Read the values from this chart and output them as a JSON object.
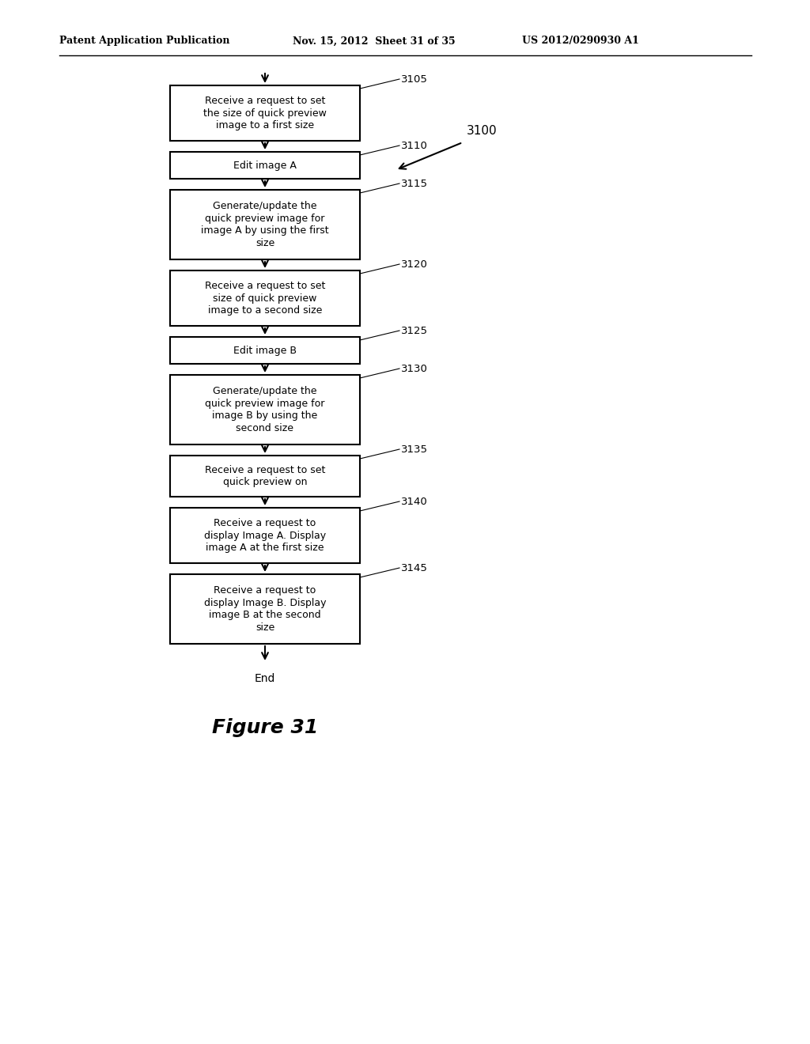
{
  "header_left": "Patent Application Publication",
  "header_mid": "Nov. 15, 2012  Sheet 31 of 35",
  "header_right": "US 2012/0290930 A1",
  "figure_label": "Figure 31",
  "flow_label": "3100",
  "boxes": [
    {
      "text": "Receive a request to set\nthe size of quick preview\nimage to a first size",
      "label": "3105",
      "lines": 3
    },
    {
      "text": "Edit image A",
      "label": "3110",
      "lines": 1
    },
    {
      "text": "Generate/update the\nquick preview image for\nimage A by using the first\nsize",
      "label": "3115",
      "lines": 4
    },
    {
      "text": "Receive a request to set\nsize of quick preview\nimage to a second size",
      "label": "3120",
      "lines": 3
    },
    {
      "text": "Edit image B",
      "label": "3125",
      "lines": 1
    },
    {
      "text": "Generate/update the\nquick preview image for\nimage B by using the\nsecond size",
      "label": "3130",
      "lines": 4
    },
    {
      "text": "Receive a request to set\nquick preview on",
      "label": "3135",
      "lines": 2
    },
    {
      "text": "Receive a request to\ndisplay Image A. Display\nimage A at the first size",
      "label": "3140",
      "lines": 3
    },
    {
      "text": "Receive a request to\ndisplay Image B. Display\nimage B at the second\nsize",
      "label": "3145",
      "lines": 4
    }
  ],
  "end_label": "End",
  "bg_color": "#ffffff",
  "box_face_color": "#ffffff",
  "box_edge_color": "#000000",
  "text_color": "#000000",
  "arrow_color": "#000000"
}
